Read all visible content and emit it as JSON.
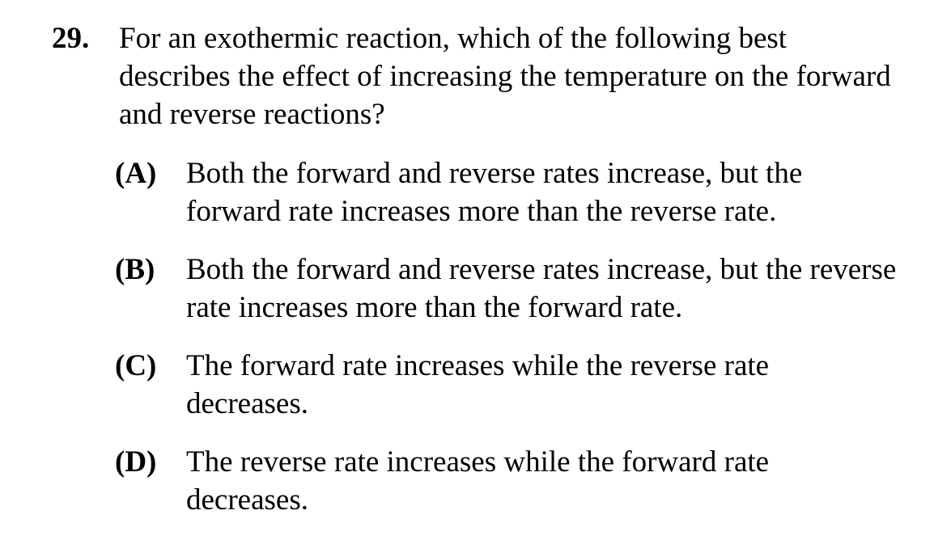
{
  "question": {
    "number": "29.",
    "text": "For an exothermic reaction, which of the following best describes the effect of increasing the temperature on the forward and reverse reactions?",
    "choices": [
      {
        "letter": "(A)",
        "text": "Both the forward and reverse rates increase, but the forward rate increases more than the reverse rate."
      },
      {
        "letter": "(B)",
        "text": "Both the forward and reverse rates increase, but the reverse rate increases more than the forward rate."
      },
      {
        "letter": "(C)",
        "text": "The forward rate increases while the reverse rate decreases."
      },
      {
        "letter": "(D)",
        "text": "The reverse rate increases while the forward rate decreases."
      }
    ]
  }
}
